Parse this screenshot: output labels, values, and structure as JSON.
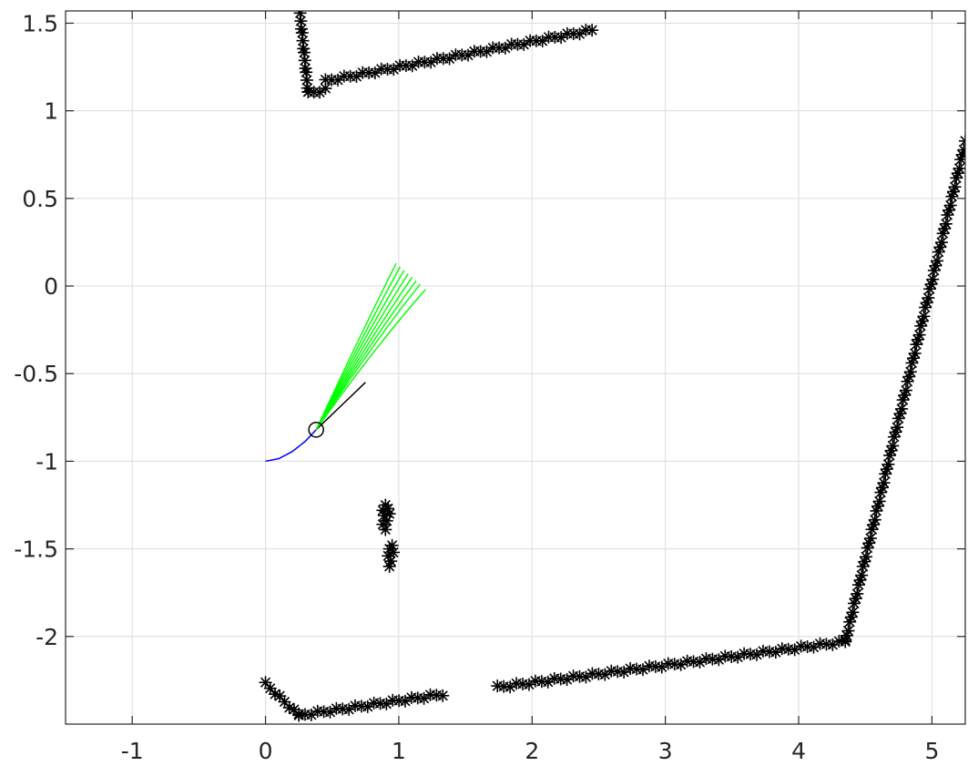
{
  "chart_data": {
    "type": "scatter",
    "title": "",
    "xlabel": "",
    "ylabel": "",
    "xlim": [
      -1.5,
      5.25
    ],
    "ylim": [
      -2.5,
      1.57
    ],
    "grid": true,
    "x_ticks": [
      -1,
      0,
      1,
      2,
      3,
      4,
      5
    ],
    "y_ticks": [
      1.5,
      1,
      0.5,
      0,
      -0.5,
      -1,
      -1.5,
      -2
    ],
    "x_tick_labels": [
      "-1",
      "0",
      "1",
      "2",
      "3",
      "4",
      "5"
    ],
    "y_tick_labels": [
      "1.5",
      "1",
      "0.5",
      "0",
      "-0.5",
      "-1",
      "-1.5",
      "-2"
    ],
    "colors": {
      "obstacles": "#000000",
      "trajectory": "#0000ff",
      "candidates": "#00ff00",
      "robot": "#000000"
    },
    "series": [
      {
        "kind": "obstacle-segments",
        "marker": "asterisk",
        "segments": [
          [
            [
              0.26,
              1.55
            ],
            [
              0.32,
              1.1
            ]
          ],
          [
            [
              0.32,
              1.1
            ],
            [
              0.45,
              1.12
            ]
          ],
          [
            [
              0.45,
              1.17
            ],
            [
              2.45,
              1.46
            ]
          ],
          [
            [
              0.0,
              -2.27
            ],
            [
              0.25,
              -2.45
            ]
          ],
          [
            [
              0.25,
              -2.45
            ],
            [
              1.33,
              -2.33
            ]
          ],
          [
            [
              1.74,
              -2.29
            ],
            [
              4.35,
              -2.03
            ]
          ],
          [
            [
              4.35,
              -2.03
            ],
            [
              5.25,
              0.82
            ]
          ]
        ]
      },
      {
        "kind": "obstacle-points",
        "marker": "asterisk",
        "points": [
          [
            0.9,
            -1.25
          ],
          [
            0.88,
            -1.28
          ],
          [
            0.92,
            -1.27
          ],
          [
            0.89,
            -1.31
          ],
          [
            0.91,
            -1.34
          ],
          [
            0.88,
            -1.36
          ],
          [
            0.9,
            -1.39
          ],
          [
            0.93,
            -1.3
          ],
          [
            0.95,
            -1.48
          ],
          [
            0.93,
            -1.5
          ],
          [
            0.96,
            -1.52
          ],
          [
            0.92,
            -1.54
          ],
          [
            0.94,
            -1.57
          ],
          [
            0.93,
            -1.6
          ]
        ]
      },
      {
        "kind": "trajectory",
        "points": [
          [
            0.0,
            -1.0
          ],
          [
            0.1,
            -0.985
          ],
          [
            0.2,
            -0.945
          ],
          [
            0.3,
            -0.885
          ],
          [
            0.38,
            -0.82
          ]
        ]
      },
      {
        "kind": "heading-line",
        "points": [
          [
            0.38,
            -0.82
          ],
          [
            0.75,
            -0.55
          ]
        ]
      },
      {
        "kind": "candidate-trajectories",
        "origin": [
          0.38,
          -0.82
        ],
        "endpoints": [
          [
            0.98,
            0.13
          ],
          [
            1.01,
            0.11
          ],
          [
            1.04,
            0.09
          ],
          [
            1.07,
            0.07
          ],
          [
            1.1,
            0.05
          ],
          [
            1.13,
            0.03
          ],
          [
            1.16,
            0.01
          ],
          [
            1.2,
            -0.02
          ]
        ]
      },
      {
        "kind": "robot",
        "center": [
          0.38,
          -0.82
        ],
        "radius": 0.055
      }
    ]
  }
}
